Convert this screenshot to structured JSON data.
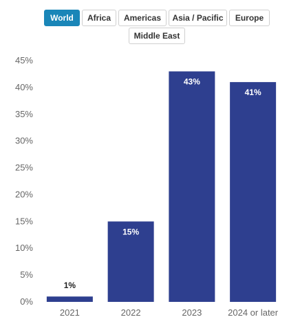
{
  "region_tabs": {
    "selected": "World",
    "items": [
      "World",
      "Africa",
      "Americas",
      "Asia / Pacific",
      "Europe",
      "Middle East"
    ]
  },
  "colors": {
    "bar": "#2e3f8f",
    "active_tab": "#1a86b8",
    "axis_text": "#666666"
  },
  "chart_data": {
    "type": "bar",
    "categories": [
      "2021",
      "2022",
      "2023",
      "2024 or later"
    ],
    "values": [
      1,
      15,
      43,
      41
    ],
    "data_labels": [
      "1%",
      "15%",
      "43%",
      "41%"
    ],
    "title": "",
    "xlabel": "",
    "ylabel": "",
    "ylim": [
      0,
      45
    ],
    "yticks": [
      0,
      5,
      10,
      15,
      20,
      25,
      30,
      35,
      40,
      45
    ],
    "ytick_format": "%",
    "grid": false,
    "legend": "none"
  }
}
